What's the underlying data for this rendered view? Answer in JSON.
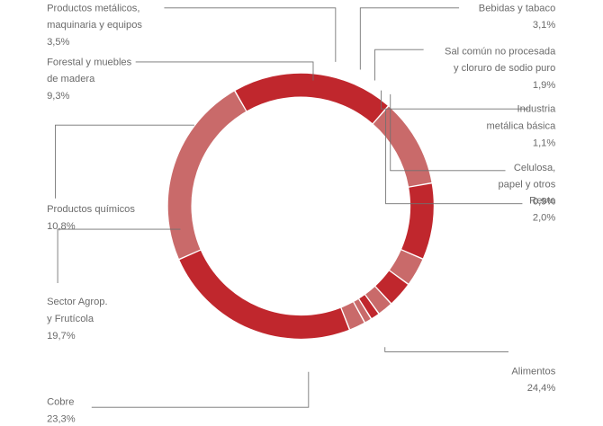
{
  "chart_data": {
    "type": "donut",
    "title": "",
    "slices": [
      {
        "label": [
          "Forestal y muebles",
          "de madera"
        ],
        "value": "9,3%",
        "pct": 9.3,
        "color": "#c0272d"
      },
      {
        "label": [
          "Productos metálicos,",
          "maquinaria y equipos"
        ],
        "value": "3,5%",
        "pct": 3.5,
        "color": "#c96a6a"
      },
      {
        "label": [
          "Bebidas y tabaco"
        ],
        "value": "3,1%",
        "pct": 3.1,
        "color": "#c0272d"
      },
      {
        "label": [
          "Sal común no procesada",
          "y cloruro de sodio puro"
        ],
        "value": "1,9%",
        "pct": 1.9,
        "color": "#c96a6a"
      },
      {
        "label": [
          "Industria",
          "metálica básica"
        ],
        "value": "1,1%",
        "pct": 1.1,
        "color": "#c0272d"
      },
      {
        "label": [
          "Celulosa,",
          "papel y otros"
        ],
        "value": "0,9%",
        "pct": 0.9,
        "color": "#c96a6a"
      },
      {
        "label": [
          "Resto"
        ],
        "value": "2,0%",
        "pct": 2.0,
        "color": "#c96a6a"
      },
      {
        "label": [
          "Alimentos"
        ],
        "value": "24,4%",
        "pct": 24.4,
        "color": "#c0272d"
      },
      {
        "label": [
          "Cobre"
        ],
        "value": "23,3%",
        "pct": 23.3,
        "color": "#c96a6a"
      },
      {
        "label": [
          "Sector Agrop.",
          "y Frutícola"
        ],
        "value": "19,7%",
        "pct": 19.7,
        "color": "#c0272d"
      },
      {
        "label": [
          "Productos químicos"
        ],
        "value": "10,8%",
        "pct": 10.8,
        "color": "#c96a6a"
      }
    ]
  }
}
